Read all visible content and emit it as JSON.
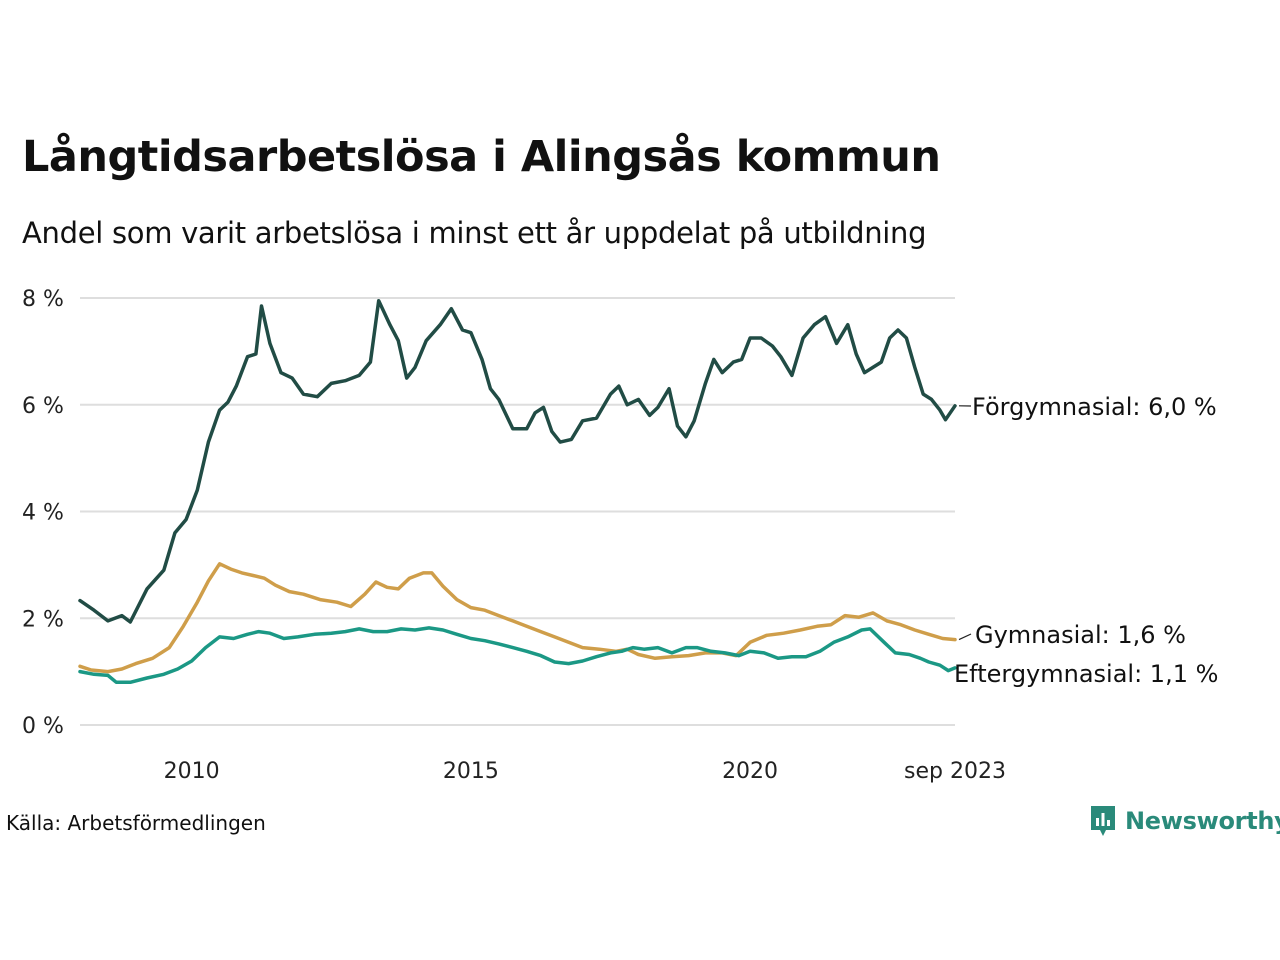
{
  "title": "Långtidsarbetslösa i Alingsås kommun",
  "subtitle": "Andel som varit arbetslösa i minst ett år uppdelat på utbildning",
  "source": "Källa: Arbetsförmedlingen",
  "brand": "Newsworthy",
  "chart_data": {
    "type": "line",
    "title": "Långtidsarbetslösa i Alingsås kommun",
    "xlabel": "",
    "ylabel": "",
    "xlim": [
      2008.0,
      2023.67
    ],
    "ylim": [
      0,
      8
    ],
    "y_ticks": [
      {
        "value": 0,
        "label": "0 %"
      },
      {
        "value": 2,
        "label": "2 %"
      },
      {
        "value": 4,
        "label": "4 %"
      },
      {
        "value": 6,
        "label": "6 %"
      },
      {
        "value": 8,
        "label": "8 %"
      }
    ],
    "x_ticks": [
      {
        "value": 2010,
        "label": "2010"
      },
      {
        "value": 2015,
        "label": "2015"
      },
      {
        "value": 2020,
        "label": "2020"
      },
      {
        "value": 2023.67,
        "label": "sep 2023"
      }
    ],
    "series": [
      {
        "name": "Förgymnasial",
        "end_label": "Förgymnasial: 6,0 %",
        "color": "#214c45",
        "points": [
          [
            2008.0,
            2.33
          ],
          [
            2008.25,
            2.15
          ],
          [
            2008.5,
            1.95
          ],
          [
            2008.75,
            2.05
          ],
          [
            2008.9,
            1.93
          ],
          [
            2009.2,
            2.55
          ],
          [
            2009.5,
            2.9
          ],
          [
            2009.7,
            3.6
          ],
          [
            2009.9,
            3.85
          ],
          [
            2010.1,
            4.4
          ],
          [
            2010.3,
            5.3
          ],
          [
            2010.5,
            5.9
          ],
          [
            2010.65,
            6.05
          ],
          [
            2010.8,
            6.35
          ],
          [
            2011.0,
            6.9
          ],
          [
            2011.15,
            6.95
          ],
          [
            2011.25,
            7.85
          ],
          [
            2011.4,
            7.15
          ],
          [
            2011.6,
            6.6
          ],
          [
            2011.8,
            6.5
          ],
          [
            2012.0,
            6.2
          ],
          [
            2012.25,
            6.15
          ],
          [
            2012.5,
            6.4
          ],
          [
            2012.75,
            6.45
          ],
          [
            2013.0,
            6.55
          ],
          [
            2013.2,
            6.8
          ],
          [
            2013.35,
            7.95
          ],
          [
            2013.55,
            7.5
          ],
          [
            2013.7,
            7.2
          ],
          [
            2013.85,
            6.5
          ],
          [
            2014.0,
            6.7
          ],
          [
            2014.2,
            7.2
          ],
          [
            2014.45,
            7.5
          ],
          [
            2014.65,
            7.8
          ],
          [
            2014.85,
            7.4
          ],
          [
            2015.0,
            7.35
          ],
          [
            2015.2,
            6.85
          ],
          [
            2015.35,
            6.3
          ],
          [
            2015.5,
            6.1
          ],
          [
            2015.75,
            5.55
          ],
          [
            2016.0,
            5.55
          ],
          [
            2016.15,
            5.85
          ],
          [
            2016.3,
            5.95
          ],
          [
            2016.45,
            5.5
          ],
          [
            2016.6,
            5.3
          ],
          [
            2016.8,
            5.35
          ],
          [
            2017.0,
            5.7
          ],
          [
            2017.25,
            5.75
          ],
          [
            2017.5,
            6.2
          ],
          [
            2017.65,
            6.35
          ],
          [
            2017.8,
            6.0
          ],
          [
            2018.0,
            6.1
          ],
          [
            2018.2,
            5.8
          ],
          [
            2018.35,
            5.95
          ],
          [
            2018.55,
            6.3
          ],
          [
            2018.7,
            5.6
          ],
          [
            2018.85,
            5.4
          ],
          [
            2019.0,
            5.7
          ],
          [
            2019.2,
            6.4
          ],
          [
            2019.35,
            6.85
          ],
          [
            2019.5,
            6.6
          ],
          [
            2019.7,
            6.8
          ],
          [
            2019.85,
            6.85
          ],
          [
            2020.0,
            7.25
          ],
          [
            2020.2,
            7.25
          ],
          [
            2020.4,
            7.1
          ],
          [
            2020.55,
            6.9
          ],
          [
            2020.75,
            6.55
          ],
          [
            2020.95,
            7.25
          ],
          [
            2021.15,
            7.5
          ],
          [
            2021.35,
            7.65
          ],
          [
            2021.55,
            7.15
          ],
          [
            2021.75,
            7.5
          ],
          [
            2021.9,
            6.95
          ],
          [
            2022.05,
            6.6
          ],
          [
            2022.2,
            6.7
          ],
          [
            2022.35,
            6.8
          ],
          [
            2022.5,
            7.25
          ],
          [
            2022.65,
            7.4
          ],
          [
            2022.8,
            7.25
          ],
          [
            2022.95,
            6.7
          ],
          [
            2023.1,
            6.2
          ],
          [
            2023.25,
            6.1
          ],
          [
            2023.4,
            5.9
          ],
          [
            2023.5,
            5.72
          ],
          [
            2023.67,
            5.98
          ]
        ]
      },
      {
        "name": "Gymnasial",
        "end_label": "Gymnasial: 1,6 %",
        "color": "#cf9e4a",
        "points": [
          [
            2008.0,
            1.1
          ],
          [
            2008.2,
            1.03
          ],
          [
            2008.5,
            1.0
          ],
          [
            2008.75,
            1.05
          ],
          [
            2009.0,
            1.15
          ],
          [
            2009.3,
            1.25
          ],
          [
            2009.6,
            1.45
          ],
          [
            2009.85,
            1.85
          ],
          [
            2010.1,
            2.3
          ],
          [
            2010.3,
            2.7
          ],
          [
            2010.5,
            3.02
          ],
          [
            2010.7,
            2.92
          ],
          [
            2010.9,
            2.85
          ],
          [
            2011.1,
            2.8
          ],
          [
            2011.3,
            2.75
          ],
          [
            2011.5,
            2.62
          ],
          [
            2011.75,
            2.5
          ],
          [
            2012.0,
            2.45
          ],
          [
            2012.3,
            2.35
          ],
          [
            2012.6,
            2.3
          ],
          [
            2012.85,
            2.22
          ],
          [
            2013.1,
            2.45
          ],
          [
            2013.3,
            2.68
          ],
          [
            2013.5,
            2.58
          ],
          [
            2013.7,
            2.55
          ],
          [
            2013.9,
            2.75
          ],
          [
            2014.15,
            2.85
          ],
          [
            2014.3,
            2.85
          ],
          [
            2014.5,
            2.6
          ],
          [
            2014.75,
            2.35
          ],
          [
            2015.0,
            2.2
          ],
          [
            2015.25,
            2.15
          ],
          [
            2015.5,
            2.05
          ],
          [
            2015.75,
            1.95
          ],
          [
            2016.0,
            1.85
          ],
          [
            2016.25,
            1.75
          ],
          [
            2016.5,
            1.65
          ],
          [
            2016.75,
            1.55
          ],
          [
            2017.0,
            1.45
          ],
          [
            2017.3,
            1.42
          ],
          [
            2017.6,
            1.38
          ],
          [
            2017.8,
            1.42
          ],
          [
            2018.0,
            1.32
          ],
          [
            2018.3,
            1.25
          ],
          [
            2018.6,
            1.28
          ],
          [
            2018.9,
            1.3
          ],
          [
            2019.2,
            1.35
          ],
          [
            2019.5,
            1.35
          ],
          [
            2019.75,
            1.3
          ],
          [
            2020.0,
            1.55
          ],
          [
            2020.3,
            1.68
          ],
          [
            2020.6,
            1.72
          ],
          [
            2020.9,
            1.78
          ],
          [
            2021.2,
            1.85
          ],
          [
            2021.45,
            1.88
          ],
          [
            2021.7,
            2.05
          ],
          [
            2021.95,
            2.02
          ],
          [
            2022.2,
            2.1
          ],
          [
            2022.45,
            1.95
          ],
          [
            2022.7,
            1.88
          ],
          [
            2022.95,
            1.78
          ],
          [
            2023.2,
            1.7
          ],
          [
            2023.45,
            1.62
          ],
          [
            2023.67,
            1.6
          ]
        ]
      },
      {
        "name": "Eftergymnasial",
        "end_label": "Eftergymnasial: 1,1 %",
        "color": "#1b9885",
        "points": [
          [
            2008.0,
            1.0
          ],
          [
            2008.25,
            0.95
          ],
          [
            2008.5,
            0.93
          ],
          [
            2008.65,
            0.8
          ],
          [
            2008.9,
            0.8
          ],
          [
            2009.2,
            0.88
          ],
          [
            2009.5,
            0.95
          ],
          [
            2009.75,
            1.05
          ],
          [
            2010.0,
            1.2
          ],
          [
            2010.25,
            1.45
          ],
          [
            2010.5,
            1.65
          ],
          [
            2010.75,
            1.62
          ],
          [
            2011.0,
            1.7
          ],
          [
            2011.2,
            1.75
          ],
          [
            2011.4,
            1.72
          ],
          [
            2011.65,
            1.62
          ],
          [
            2011.9,
            1.65
          ],
          [
            2012.2,
            1.7
          ],
          [
            2012.5,
            1.72
          ],
          [
            2012.75,
            1.75
          ],
          [
            2013.0,
            1.8
          ],
          [
            2013.25,
            1.75
          ],
          [
            2013.5,
            1.75
          ],
          [
            2013.75,
            1.8
          ],
          [
            2014.0,
            1.78
          ],
          [
            2014.25,
            1.82
          ],
          [
            2014.5,
            1.78
          ],
          [
            2014.75,
            1.7
          ],
          [
            2015.0,
            1.62
          ],
          [
            2015.25,
            1.58
          ],
          [
            2015.5,
            1.52
          ],
          [
            2015.75,
            1.45
          ],
          [
            2016.0,
            1.38
          ],
          [
            2016.25,
            1.3
          ],
          [
            2016.5,
            1.18
          ],
          [
            2016.75,
            1.15
          ],
          [
            2017.0,
            1.2
          ],
          [
            2017.25,
            1.28
          ],
          [
            2017.5,
            1.35
          ],
          [
            2017.7,
            1.38
          ],
          [
            2017.9,
            1.45
          ],
          [
            2018.1,
            1.42
          ],
          [
            2018.35,
            1.45
          ],
          [
            2018.6,
            1.35
          ],
          [
            2018.85,
            1.45
          ],
          [
            2019.05,
            1.45
          ],
          [
            2019.3,
            1.38
          ],
          [
            2019.55,
            1.35
          ],
          [
            2019.8,
            1.3
          ],
          [
            2020.0,
            1.38
          ],
          [
            2020.25,
            1.35
          ],
          [
            2020.5,
            1.25
          ],
          [
            2020.75,
            1.28
          ],
          [
            2021.0,
            1.28
          ],
          [
            2021.25,
            1.38
          ],
          [
            2021.5,
            1.55
          ],
          [
            2021.75,
            1.65
          ],
          [
            2022.0,
            1.78
          ],
          [
            2022.15,
            1.8
          ],
          [
            2022.4,
            1.55
          ],
          [
            2022.6,
            1.35
          ],
          [
            2022.85,
            1.32
          ],
          [
            2023.05,
            1.25
          ],
          [
            2023.2,
            1.18
          ],
          [
            2023.4,
            1.12
          ],
          [
            2023.55,
            1.02
          ],
          [
            2023.67,
            1.07
          ]
        ]
      }
    ]
  }
}
